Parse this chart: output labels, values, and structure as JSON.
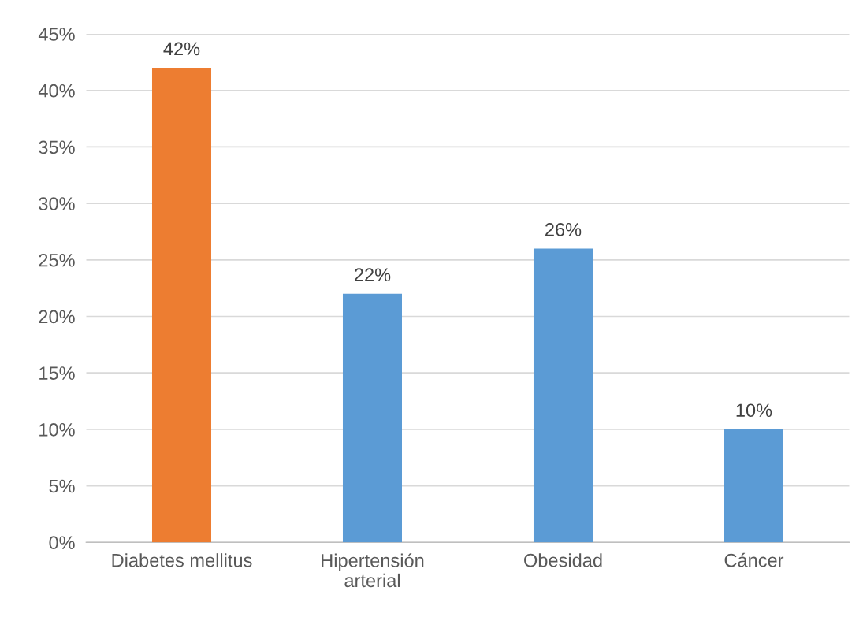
{
  "chart_data": {
    "type": "bar",
    "categories": [
      "Diabetes mellitus",
      "Hipertensión\narterial",
      "Obesidad",
      "Cáncer"
    ],
    "values": [
      42,
      22,
      26,
      10
    ],
    "colors": [
      "#ed7d31",
      "#5b9bd5",
      "#5b9bd5",
      "#5b9bd5"
    ],
    "value_labels": [
      "42%",
      "22%",
      "26%",
      "10%"
    ],
    "ylim": [
      0,
      45
    ],
    "yticks": [
      {
        "value": 0,
        "label": "0%"
      },
      {
        "value": 5,
        "label": "5%"
      },
      {
        "value": 10,
        "label": "10%"
      },
      {
        "value": 15,
        "label": "15%"
      },
      {
        "value": 20,
        "label": "20%"
      },
      {
        "value": 25,
        "label": "25%"
      },
      {
        "value": 30,
        "label": "30%"
      },
      {
        "value": 35,
        "label": "35%"
      },
      {
        "value": 40,
        "label": "40%"
      },
      {
        "value": 45,
        "label": "45%"
      }
    ],
    "grid": "y"
  }
}
